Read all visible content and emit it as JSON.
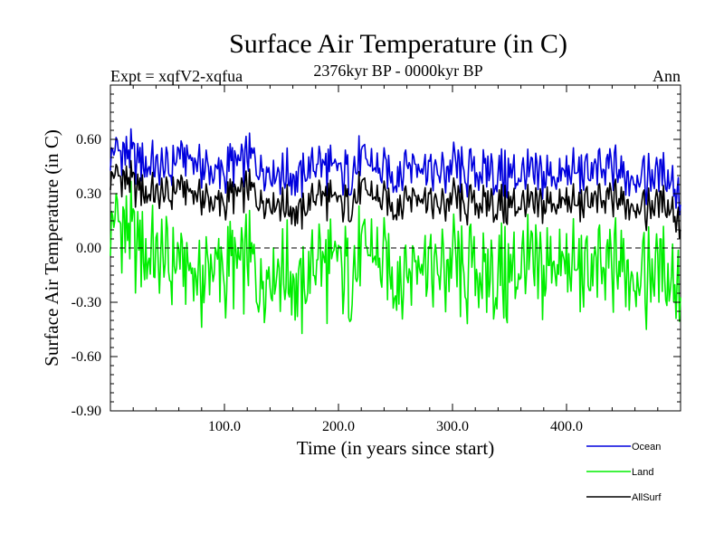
{
  "chart_data": {
    "type": "line",
    "title": "Surface Air Temperature (in C)",
    "subtitle": "2376kyr BP - 0000kyr BP",
    "left_label": "Expt = xqfV2-xqfua",
    "right_label": "Ann",
    "xlabel": "Time (in years since start)",
    "ylabel": "Surface Air Temperature (in C)",
    "xlim": [
      0,
      500
    ],
    "ylim": [
      -0.9,
      0.9
    ],
    "x_ticks": [
      100,
      200,
      300,
      400
    ],
    "x_tick_labels": [
      "100.0",
      "200.0",
      "300.0",
      "400.0"
    ],
    "y_ticks": [
      -0.9,
      -0.6,
      -0.3,
      0.0,
      0.3,
      0.6
    ],
    "y_tick_labels": [
      "-0.90",
      "-0.60",
      "-0.30",
      "0.00",
      "0.30",
      "0.60"
    ],
    "zero_line": "dashed",
    "legend_position": "bottom-right",
    "series": [
      {
        "name": "Ocean",
        "color": "#0000dd",
        "x_start": 0,
        "x_step": 10,
        "values": [
          0.55,
          0.52,
          0.5,
          0.48,
          0.45,
          0.42,
          0.5,
          0.48,
          0.45,
          0.4,
          0.42,
          0.46,
          0.5,
          0.48,
          0.44,
          0.42,
          0.38,
          0.4,
          0.47,
          0.45,
          0.41,
          0.42,
          0.48,
          0.44,
          0.42,
          0.4,
          0.49,
          0.46,
          0.43,
          0.4,
          0.44,
          0.4,
          0.42,
          0.44,
          0.4,
          0.41,
          0.4,
          0.38,
          0.42,
          0.4,
          0.42,
          0.4,
          0.44,
          0.41,
          0.45,
          0.4,
          0.42,
          0.39,
          0.41,
          0.4,
          0.3
        ]
      },
      {
        "name": "Land",
        "color": "#00ee00",
        "x_start": 0,
        "x_step": 10,
        "values": [
          0.2,
          0.1,
          0.05,
          0.0,
          -0.05,
          -0.1,
          -0.1,
          -0.15,
          -0.2,
          -0.1,
          -0.15,
          -0.1,
          -0.05,
          -0.15,
          -0.1,
          -0.1,
          -0.2,
          -0.25,
          -0.05,
          -0.1,
          -0.1,
          -0.15,
          -0.05,
          -0.05,
          -0.1,
          -0.15,
          -0.1,
          -0.05,
          -0.1,
          -0.15,
          -0.1,
          -0.2,
          -0.1,
          -0.15,
          -0.15,
          -0.15,
          -0.1,
          -0.15,
          -0.1,
          -0.05,
          -0.1,
          -0.15,
          -0.1,
          -0.15,
          -0.1,
          -0.1,
          -0.1,
          -0.15,
          -0.1,
          -0.15,
          -0.15
        ]
      },
      {
        "name": "AllSurf",
        "color": "#000000",
        "x_start": 0,
        "x_step": 10,
        "values": [
          0.42,
          0.38,
          0.35,
          0.32,
          0.3,
          0.28,
          0.33,
          0.3,
          0.28,
          0.24,
          0.25,
          0.29,
          0.33,
          0.29,
          0.27,
          0.25,
          0.2,
          0.2,
          0.3,
          0.28,
          0.24,
          0.25,
          0.31,
          0.28,
          0.26,
          0.23,
          0.3,
          0.29,
          0.26,
          0.22,
          0.27,
          0.22,
          0.25,
          0.26,
          0.23,
          0.24,
          0.24,
          0.21,
          0.26,
          0.25,
          0.26,
          0.22,
          0.28,
          0.24,
          0.28,
          0.25,
          0.26,
          0.22,
          0.25,
          0.24,
          0.15
        ]
      }
    ]
  }
}
